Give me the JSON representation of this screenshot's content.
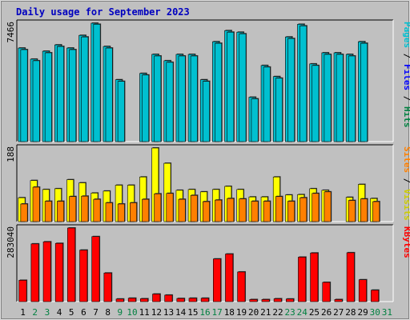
{
  "title": "Daily usage for September 2023",
  "colors": {
    "background": "#c0c0c0",
    "plot_background": "#c0c0c0",
    "title": "#0000c0",
    "hits": "#00c0d0",
    "files": "#0060ff",
    "pages": "#00c0d0",
    "visits": "#ffff00",
    "sites": "#ff8000",
    "kbytes": "#ff0000",
    "weekday_label": "#000000",
    "weekend_label": "#008040"
  },
  "panels": {
    "hits": {
      "ymax_label": "7466",
      "ylabel_parts": [
        {
          "text": "Pages",
          "color": "#00c0d0"
        },
        {
          "text": " / ",
          "color": "#000000"
        },
        {
          "text": "Files",
          "color": "#0000ff"
        },
        {
          "text": " / ",
          "color": "#000000"
        },
        {
          "text": "Hits",
          "color": "#008040"
        }
      ]
    },
    "visits": {
      "ymax_label": "188",
      "ylabel_parts": [
        {
          "text": "Sites",
          "color": "#ff8000"
        },
        {
          "text": " / ",
          "color": "#000000"
        },
        {
          "text": "Visits",
          "color": "#cccc00"
        }
      ]
    },
    "kbytes": {
      "ymax_label": "283040",
      "ylabel_parts": [
        {
          "text": "KBytes",
          "color": "#ff0000"
        }
      ]
    }
  },
  "chart_data": [
    {
      "type": "bar",
      "categories": [
        "1",
        "2",
        "3",
        "4",
        "5",
        "6",
        "7",
        "8",
        "9",
        "10",
        "11",
        "12",
        "13",
        "14",
        "15",
        "16",
        "17",
        "18",
        "19",
        "20",
        "21",
        "22",
        "23",
        "24",
        "25",
        "26",
        "27",
        "28",
        "29",
        "30",
        "31"
      ],
      "ylim": [
        0,
        7466
      ],
      "series": [
        {
          "name": "Hits",
          "values": [
            5900,
            5200,
            5700,
            6100,
            5900,
            6700,
            7466,
            6000,
            3900,
            0,
            4300,
            5500,
            5100,
            5500,
            5500,
            3900,
            6300,
            7000,
            6900,
            2800,
            4800,
            4100,
            6600,
            7400,
            4900,
            5600,
            5600,
            5500,
            6300,
            0,
            0
          ]
        },
        {
          "name": "Files",
          "values": [
            5800,
            5100,
            5600,
            6000,
            5800,
            6600,
            7400,
            5900,
            3800,
            0,
            4200,
            5400,
            5000,
            5400,
            5400,
            3800,
            6200,
            6900,
            6800,
            2700,
            4700,
            4000,
            6500,
            7300,
            4800,
            5500,
            5500,
            5400,
            6200,
            0,
            0
          ]
        }
      ]
    },
    {
      "type": "bar",
      "categories": [
        "1",
        "2",
        "3",
        "4",
        "5",
        "6",
        "7",
        "8",
        "9",
        "10",
        "11",
        "12",
        "13",
        "14",
        "15",
        "16",
        "17",
        "18",
        "19",
        "20",
        "21",
        "22",
        "23",
        "24",
        "25",
        "26",
        "27",
        "28",
        "29",
        "30",
        "31"
      ],
      "ylim": [
        0,
        188
      ],
      "series": [
        {
          "name": "Visits",
          "values": [
            61,
            105,
            82,
            84,
            107,
            99,
            73,
            78,
            93,
            93,
            114,
            188,
            149,
            80,
            82,
            76,
            82,
            90,
            82,
            63,
            63,
            114,
            68,
            69,
            84,
            80,
            0,
            62,
            95,
            59,
            0
          ]
        },
        {
          "name": "Sites",
          "values": [
            45,
            88,
            52,
            52,
            64,
            65,
            57,
            48,
            45,
            48,
            57,
            71,
            72,
            57,
            67,
            51,
            55,
            59,
            58,
            52,
            52,
            64,
            52,
            61,
            72,
            76,
            0,
            54,
            58,
            51,
            0
          ]
        }
      ]
    },
    {
      "type": "bar",
      "categories": [
        "1",
        "2",
        "3",
        "4",
        "5",
        "6",
        "7",
        "8",
        "9",
        "10",
        "11",
        "12",
        "13",
        "14",
        "15",
        "16",
        "17",
        "18",
        "19",
        "20",
        "21",
        "22",
        "23",
        "24",
        "25",
        "26",
        "27",
        "28",
        "29",
        "30",
        "31"
      ],
      "ylim": [
        0,
        283040
      ],
      "series": [
        {
          "name": "KBytes",
          "values": [
            82000,
            222000,
            230000,
            224000,
            283040,
            198000,
            250000,
            110000,
            10000,
            13000,
            11000,
            29000,
            25000,
            12000,
            13000,
            13000,
            164000,
            183000,
            114000,
            8000,
            8000,
            11000,
            10000,
            171000,
            187000,
            74000,
            8000,
            188000,
            84000,
            44000,
            0
          ]
        }
      ]
    }
  ]
}
